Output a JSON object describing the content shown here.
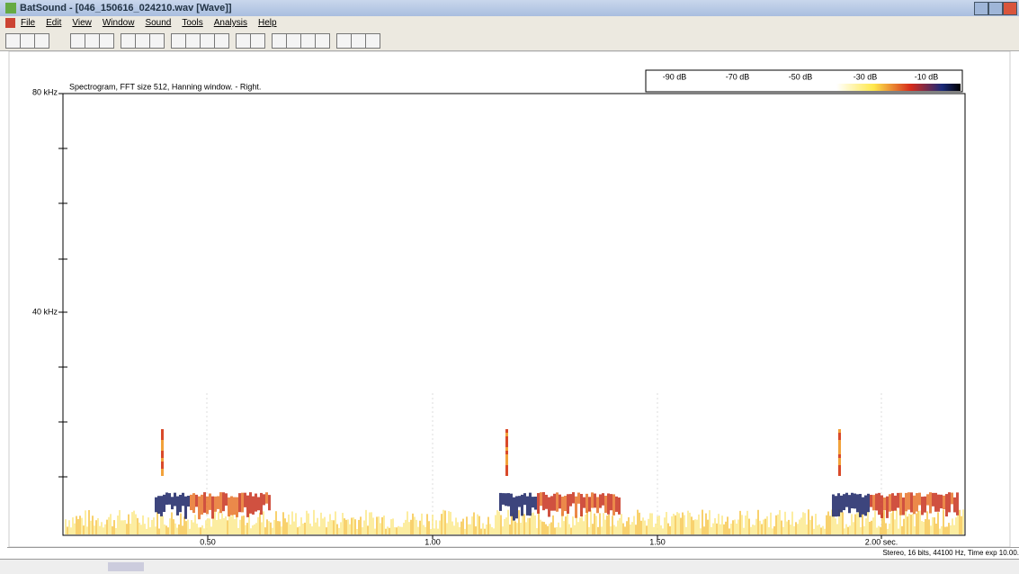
{
  "window": {
    "title": "BatSound - [046_150616_024210.wav [Wave]]"
  },
  "menu": [
    "File",
    "Edit",
    "View",
    "Window",
    "Sound",
    "Tools",
    "Analysis",
    "Help"
  ],
  "spectrogram": {
    "title": "Spectrogram, FFT size 512, Hanning window. - Right.",
    "y_labels": [
      "80 kHz",
      "40 kHz"
    ],
    "x_labels": [
      "0.50",
      "1.00",
      "1.50",
      "2.00 sec."
    ],
    "scale_labels": [
      "-90 dB",
      "-70 dB",
      "-50 dB",
      "-30 dB",
      "-10 dB"
    ]
  },
  "status": "Stereo, 16 bits, 44100 Hz, Time exp 10.00."
}
